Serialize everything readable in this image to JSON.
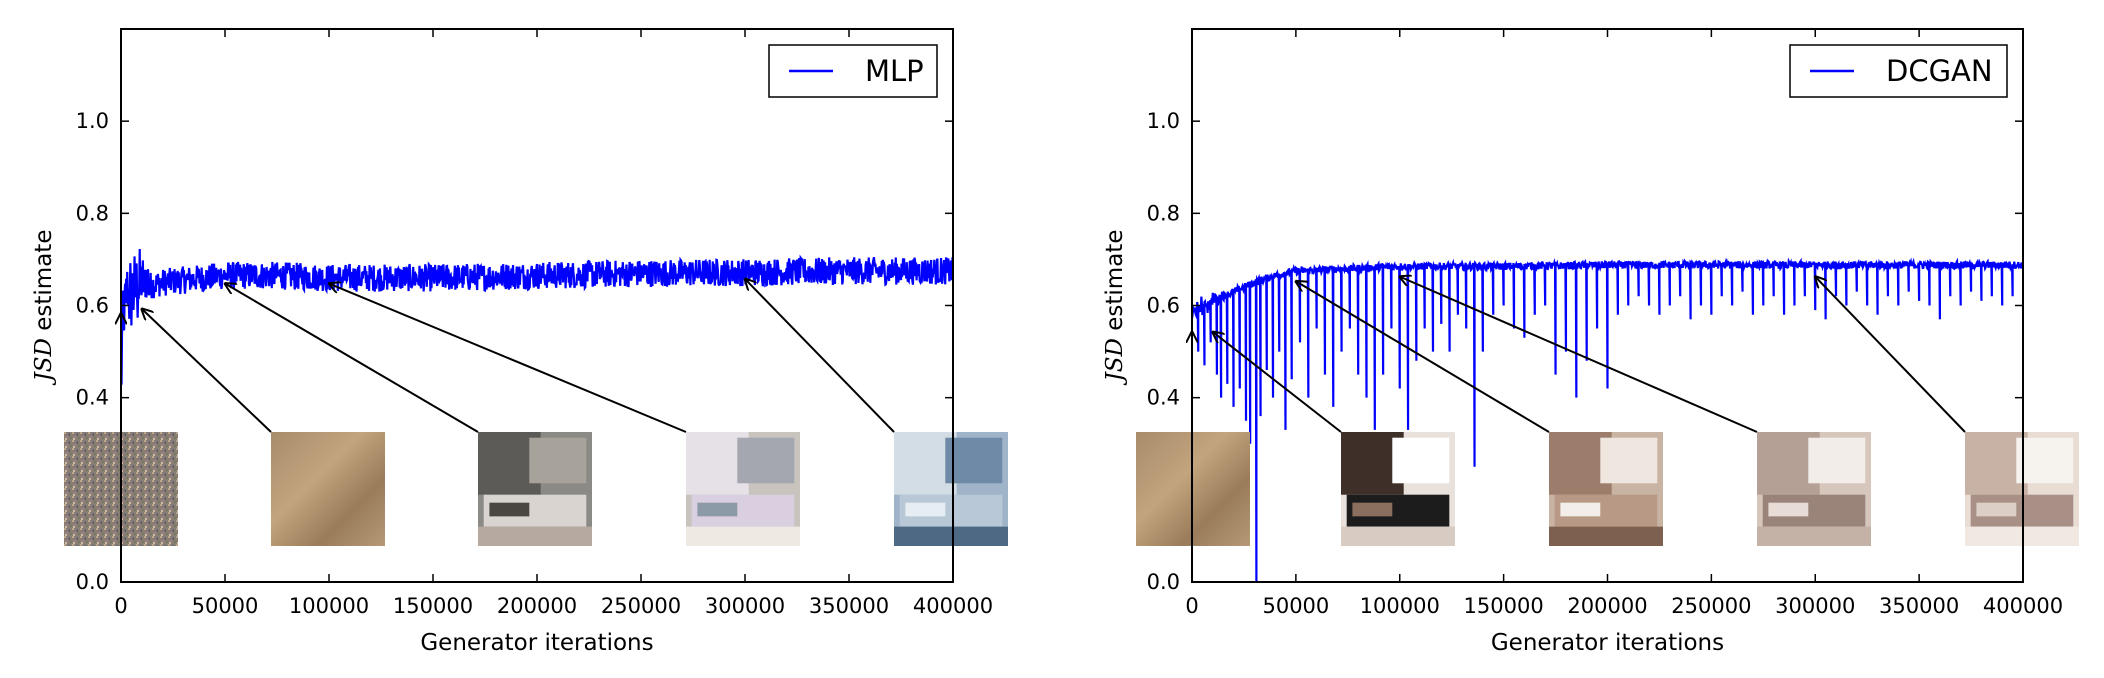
{
  "chart_data": [
    {
      "type": "line",
      "xlabel": "Generator iterations",
      "ylabel_italic": "JSD",
      "ylabel_rest": " estimate",
      "xlim": [
        0,
        400000
      ],
      "ylim": [
        0.0,
        1.2
      ],
      "xticks": [
        0,
        50000,
        100000,
        150000,
        200000,
        250000,
        300000,
        350000,
        400000
      ],
      "xtick_labels": [
        "0",
        "50000",
        "100000",
        "150000",
        "200000",
        "250000",
        "300000",
        "350000",
        "400000"
      ],
      "yticks": [
        0.0,
        0.4,
        0.6,
        0.8,
        1.0
      ],
      "ytick_labels": [
        "0.0",
        "0.4",
        "0.6",
        "0.8",
        "1.0"
      ],
      "grid": false,
      "legend_position": "top-right",
      "series": [
        {
          "name": "MLP",
          "color": "#0000ff",
          "x": [
            0,
            1000,
            3000,
            6000,
            10000,
            15000,
            20000,
            30000,
            40000,
            50000,
            75000,
            100000,
            150000,
            200000,
            250000,
            300000,
            350000,
            400000
          ],
          "y": [
            0.44,
            0.6,
            0.62,
            0.63,
            0.64,
            0.645,
            0.65,
            0.655,
            0.66,
            0.665,
            0.665,
            0.66,
            0.66,
            0.665,
            0.67,
            0.672,
            0.675,
            0.675
          ],
          "noise_band": 0.03
        }
      ],
      "annotations": [
        {
          "label": "sample-iter-0",
          "target": [
            0,
            0.6
          ]
        },
        {
          "label": "sample-iter-10000",
          "target": [
            10000,
            0.61
          ]
        },
        {
          "label": "sample-iter-50000",
          "target": [
            50000,
            0.665
          ]
        },
        {
          "label": "sample-iter-100000",
          "target": [
            100000,
            0.665
          ]
        },
        {
          "label": "sample-iter-300000",
          "target": [
            300000,
            0.675
          ]
        }
      ]
    },
    {
      "type": "line",
      "xlabel": "Generator iterations",
      "ylabel_italic": "JSD",
      "ylabel_rest": " estimate",
      "xlim": [
        0,
        400000
      ],
      "ylim": [
        0.0,
        1.2
      ],
      "xticks": [
        0,
        50000,
        100000,
        150000,
        200000,
        250000,
        300000,
        350000,
        400000
      ],
      "xtick_labels": [
        "0",
        "50000",
        "100000",
        "150000",
        "200000",
        "250000",
        "300000",
        "350000",
        "400000"
      ],
      "yticks": [
        0.0,
        0.4,
        0.6,
        0.8,
        1.0
      ],
      "ytick_labels": [
        "0.0",
        "0.4",
        "0.6",
        "0.8",
        "1.0"
      ],
      "grid": false,
      "legend_position": "top-right",
      "series": [
        {
          "name": "DCGAN",
          "color": "#0000ff",
          "x": [
            0,
            2000,
            5000,
            10000,
            15000,
            20000,
            30000,
            40000,
            50000,
            75000,
            100000,
            150000,
            200000,
            250000,
            300000,
            350000,
            400000
          ],
          "y": [
            0.58,
            0.59,
            0.6,
            0.61,
            0.62,
            0.63,
            0.65,
            0.665,
            0.675,
            0.68,
            0.685,
            0.685,
            0.688,
            0.688,
            0.688,
            0.688,
            0.688
          ],
          "noise_band": 0.008,
          "dips": [
            [
              3000,
              0.5
            ],
            [
              6000,
              0.47
            ],
            [
              9000,
              0.52
            ],
            [
              12000,
              0.45
            ],
            [
              14000,
              0.4
            ],
            [
              17000,
              0.43
            ],
            [
              20000,
              0.38
            ],
            [
              23000,
              0.42
            ],
            [
              26000,
              0.35
            ],
            [
              28000,
              0.3
            ],
            [
              31000,
              0.0
            ],
            [
              33000,
              0.36
            ],
            [
              36000,
              0.46
            ],
            [
              39000,
              0.4
            ],
            [
              42000,
              0.5
            ],
            [
              45000,
              0.33
            ],
            [
              48000,
              0.44
            ],
            [
              52000,
              0.52
            ],
            [
              56000,
              0.4
            ],
            [
              60000,
              0.55
            ],
            [
              64000,
              0.45
            ],
            [
              68000,
              0.38
            ],
            [
              72000,
              0.5
            ],
            [
              76000,
              0.55
            ],
            [
              80000,
              0.45
            ],
            [
              84000,
              0.4
            ],
            [
              88000,
              0.33
            ],
            [
              92000,
              0.45
            ],
            [
              96000,
              0.55
            ],
            [
              100000,
              0.42
            ],
            [
              104000,
              0.33
            ],
            [
              108000,
              0.48
            ],
            [
              112000,
              0.55
            ],
            [
              116000,
              0.5
            ],
            [
              120000,
              0.56
            ],
            [
              124000,
              0.5
            ],
            [
              128000,
              0.58
            ],
            [
              132000,
              0.55
            ],
            [
              136000,
              0.25
            ],
            [
              140000,
              0.5
            ],
            [
              145000,
              0.58
            ],
            [
              150000,
              0.6
            ],
            [
              155000,
              0.55
            ],
            [
              160000,
              0.53
            ],
            [
              165000,
              0.58
            ],
            [
              170000,
              0.6
            ],
            [
              175000,
              0.45
            ],
            [
              180000,
              0.5
            ],
            [
              185000,
              0.4
            ],
            [
              190000,
              0.48
            ],
            [
              195000,
              0.55
            ],
            [
              200000,
              0.42
            ],
            [
              205000,
              0.58
            ],
            [
              210000,
              0.6
            ],
            [
              215000,
              0.62
            ],
            [
              220000,
              0.6
            ],
            [
              225000,
              0.58
            ],
            [
              230000,
              0.6
            ],
            [
              235000,
              0.62
            ],
            [
              240000,
              0.57
            ],
            [
              245000,
              0.6
            ],
            [
              250000,
              0.58
            ],
            [
              255000,
              0.62
            ],
            [
              260000,
              0.6
            ],
            [
              265000,
              0.63
            ],
            [
              270000,
              0.58
            ],
            [
              275000,
              0.6
            ],
            [
              280000,
              0.62
            ],
            [
              285000,
              0.58
            ],
            [
              290000,
              0.6
            ],
            [
              295000,
              0.62
            ],
            [
              300000,
              0.59
            ],
            [
              305000,
              0.57
            ],
            [
              310000,
              0.62
            ],
            [
              315000,
              0.6
            ],
            [
              320000,
              0.63
            ],
            [
              325000,
              0.6
            ],
            [
              330000,
              0.58
            ],
            [
              335000,
              0.62
            ],
            [
              340000,
              0.6
            ],
            [
              345000,
              0.63
            ],
            [
              350000,
              0.61
            ],
            [
              355000,
              0.6
            ],
            [
              360000,
              0.57
            ],
            [
              365000,
              0.62
            ],
            [
              370000,
              0.6
            ],
            [
              375000,
              0.63
            ],
            [
              380000,
              0.61
            ],
            [
              385000,
              0.62
            ],
            [
              390000,
              0.6
            ],
            [
              395000,
              0.62
            ]
          ]
        }
      ],
      "annotations": [
        {
          "label": "sample-iter-0",
          "target": [
            0,
            0.56
          ]
        },
        {
          "label": "sample-iter-10000",
          "target": [
            10000,
            0.56
          ]
        },
        {
          "label": "sample-iter-50000",
          "target": [
            50000,
            0.67
          ]
        },
        {
          "label": "sample-iter-100000",
          "target": [
            100000,
            0.68
          ]
        },
        {
          "label": "sample-iter-300000",
          "target": [
            300000,
            0.68
          ]
        }
      ]
    }
  ]
}
